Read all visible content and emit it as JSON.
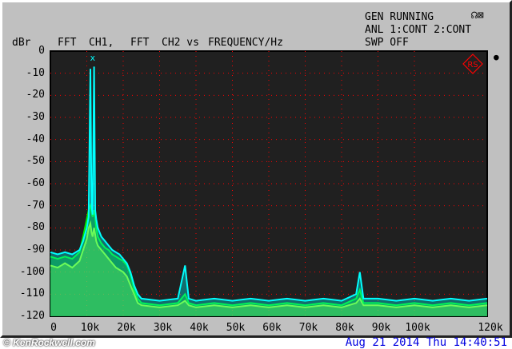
{
  "header": {
    "status_lines": [
      "GEN RUNNING",
      "ANL 1:CONT 2:CONT",
      "SWP OFF"
    ],
    "title_parts": [
      "FFT",
      "CH1,",
      "FFT",
      "CH2 vs",
      "FREQUENCY/Hz"
    ],
    "y_unit": "dBr",
    "icons": [
      "headphones-icon",
      "speaker-muted-icon",
      "knob-icon",
      "rs-logo"
    ]
  },
  "footer": {
    "watermark": "© KenRockwell.com",
    "timestamp": "Aug 21 2014 Thu 14:40:51"
  },
  "colors": {
    "ch1": "#ffff00",
    "ch2": "#00ffff",
    "ch3": "#00ee00",
    "grid": "#ff0000",
    "plot_bg": "#202020",
    "timestamp": "#0000e0"
  },
  "chart_data": {
    "type": "line",
    "title": "FFT CH1, FFT CH2 vs FREQUENCY/Hz",
    "xlabel": "FREQUENCY/Hz",
    "ylabel": "dBr",
    "xlim": [
      0,
      120000
    ],
    "ylim": [
      -120,
      0
    ],
    "grid": true,
    "x_tick_labels": [
      "0",
      "10k",
      "20k",
      "30k",
      "40k",
      "50k",
      "60k",
      "70k",
      "80k",
      "90k",
      "100k",
      "120k"
    ],
    "x_tick_values": [
      0,
      10000,
      20000,
      30000,
      40000,
      50000,
      60000,
      70000,
      80000,
      90000,
      100000,
      120000
    ],
    "y_tick_labels": [
      "0",
      "-10",
      "-20",
      "-30",
      "-40",
      "-50",
      "-60",
      "-70",
      "-80",
      "-90",
      "-100",
      "-110",
      "-120"
    ],
    "y_tick_values": [
      0,
      -10,
      -20,
      -30,
      -40,
      -50,
      -60,
      -70,
      -80,
      -90,
      -100,
      -110,
      -120
    ],
    "x": [
      0,
      2000,
      4000,
      6000,
      8000,
      9000,
      10000,
      10500,
      11000,
      11300,
      11600,
      12000,
      12300,
      12600,
      13000,
      14000,
      15000,
      16000,
      17000,
      18000,
      19000,
      20000,
      21000,
      22000,
      23000,
      24000,
      25000,
      30000,
      35000,
      37000,
      38000,
      40000,
      45000,
      50000,
      55000,
      60000,
      65000,
      70000,
      75000,
      80000,
      84000,
      85000,
      86000,
      90000,
      95000,
      100000,
      105000,
      110000,
      115000,
      120000
    ],
    "series": [
      {
        "color": "#ffff00",
        "values": [
          -97,
          -98,
          -96,
          -98,
          -95,
          -90,
          -85,
          -80,
          -78,
          -82,
          -84,
          -80,
          -83,
          -86,
          -88,
          -90,
          -92,
          -94,
          -96,
          -98,
          -99,
          -100,
          -102,
          -106,
          -110,
          -114,
          -115,
          -116,
          -115,
          -113,
          -115,
          -116,
          -115,
          -116,
          -115,
          -116,
          -115,
          -116,
          -115,
          -116,
          -114,
          -112,
          -115,
          -115,
          -116,
          -115,
          -116,
          -115,
          -116,
          -115
        ]
      },
      {
        "color": "#00ee00",
        "values": [
          -93,
          -94,
          -93,
          -94,
          -91,
          -84,
          -76,
          -72,
          -70,
          -73,
          -75,
          -72,
          -75,
          -80,
          -84,
          -87,
          -89,
          -90,
          -92,
          -93,
          -94,
          -95,
          -97,
          -101,
          -108,
          -112,
          -114,
          -115,
          -114,
          -110,
          -114,
          -115,
          -114,
          -115,
          -114,
          -115,
          -114,
          -115,
          -114,
          -115,
          -112,
          -108,
          -114,
          -114,
          -115,
          -114,
          -115,
          -114,
          -115,
          -114
        ]
      },
      {
        "color": "#00ffff",
        "values": [
          -91,
          -92,
          -91,
          -92,
          -90,
          -86,
          -80,
          -75,
          -8,
          -70,
          -74,
          -7,
          -72,
          -76,
          -80,
          -84,
          -86,
          -88,
          -90,
          -91,
          -92,
          -94,
          -96,
          -100,
          -106,
          -110,
          -112,
          -113,
          -112,
          -97,
          -112,
          -113,
          -112,
          -113,
          -112,
          -113,
          -112,
          -113,
          -112,
          -113,
          -110,
          -100,
          -112,
          -112,
          -113,
          -112,
          -113,
          -112,
          -113,
          -112
        ]
      }
    ],
    "markers": [
      {
        "x": 11600,
        "label": "x",
        "color": "#00ffff"
      }
    ]
  }
}
